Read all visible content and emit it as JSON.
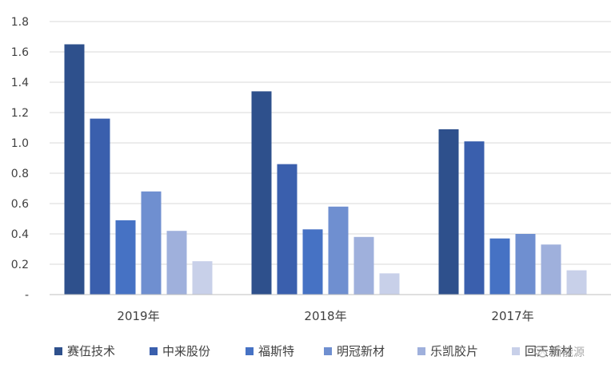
{
  "chart_data": {
    "type": "bar",
    "title": "",
    "xlabel": "",
    "ylabel": "",
    "ylim": [
      0,
      1.8
    ],
    "yticks": [
      "-",
      "0.2",
      "0.4",
      "0.6",
      "0.8",
      "1.0",
      "1.2",
      "1.4",
      "1.6",
      "1.8"
    ],
    "grid": true,
    "legend_position": "bottom",
    "categories": [
      "2019年",
      "2018年",
      "2017年"
    ],
    "series": [
      {
        "name": "赛伍技术",
        "color": "#2e508c",
        "values": [
          1.65,
          1.34,
          1.09
        ]
      },
      {
        "name": "中来股份",
        "color": "#3a5fad",
        "values": [
          1.16,
          0.86,
          1.01
        ]
      },
      {
        "name": "福斯特",
        "color": "#4672c4",
        "values": [
          0.49,
          0.43,
          0.37
        ]
      },
      {
        "name": "明冠新材",
        "color": "#6f8fd0",
        "values": [
          0.68,
          0.58,
          0.4
        ]
      },
      {
        "name": "乐凯胶片",
        "color": "#9fb0dc",
        "values": [
          0.42,
          0.38,
          0.33
        ]
      },
      {
        "name": "回天新材",
        "color": "#c8d0e9",
        "values": [
          0.22,
          0.14,
          0.16
        ]
      }
    ]
  },
  "watermark": {
    "text": "新能源",
    "icon": "wechat-icon"
  }
}
